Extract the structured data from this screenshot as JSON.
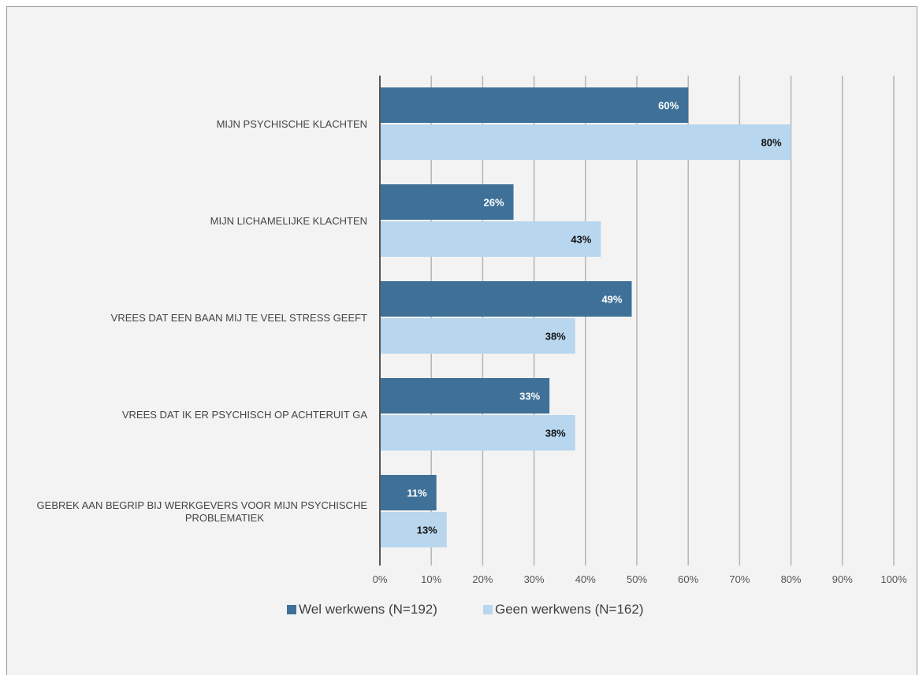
{
  "chart_data": {
    "type": "bar",
    "orientation": "horizontal",
    "categories": [
      "MIJN PSYCHISCHE KLACHTEN",
      "MIJN LICHAMELIJKE KLACHTEN",
      "VREES DAT EEN BAAN MIJ TE VEEL STRESS GEEFT",
      "VREES DAT IK ER PSYCHISCH OP ACHTERUIT GA",
      "GEBREK AAN BEGRIP BIJ WERKGEVERS VOOR MIJN PSYCHISCHE PROBLEMATIEK"
    ],
    "category_lines": [
      [
        "MIJN PSYCHISCHE KLACHTEN"
      ],
      [
        "MIJN LICHAMELIJKE KLACHTEN"
      ],
      [
        "VREES DAT EEN BAAN MIJ TE VEEL STRESS GEEFT"
      ],
      [
        "VREES DAT IK ER PSYCHISCH OP ACHTERUIT GA"
      ],
      [
        "GEBREK AAN BEGRIP BIJ WERKGEVERS VOOR MIJN PSYCHISCHE",
        "PROBLEMATIEK"
      ]
    ],
    "series": [
      {
        "name": "Wel werkwens (N=192)",
        "values": [
          60,
          26,
          49,
          33,
          11
        ],
        "labels": [
          "60%",
          "26%",
          "49%",
          "33%",
          "11%"
        ],
        "color": "#3f7198",
        "label_color": "#ffffff"
      },
      {
        "name": "Geen werkwens (N=162)",
        "values": [
          80,
          43,
          38,
          38,
          13
        ],
        "labels": [
          "80%",
          "43%",
          "38%",
          "38%",
          "13%"
        ],
        "color": "#b8d6ee",
        "label_color": "#111111"
      }
    ],
    "xlim": [
      0,
      100
    ],
    "xticks": [
      "0%",
      "10%",
      "20%",
      "30%",
      "40%",
      "50%",
      "60%",
      "70%",
      "80%",
      "90%",
      "100%"
    ],
    "grid": true,
    "legend_position": "bottom",
    "grid_color": "#b5b5b5",
    "axis_color": "#555555"
  }
}
